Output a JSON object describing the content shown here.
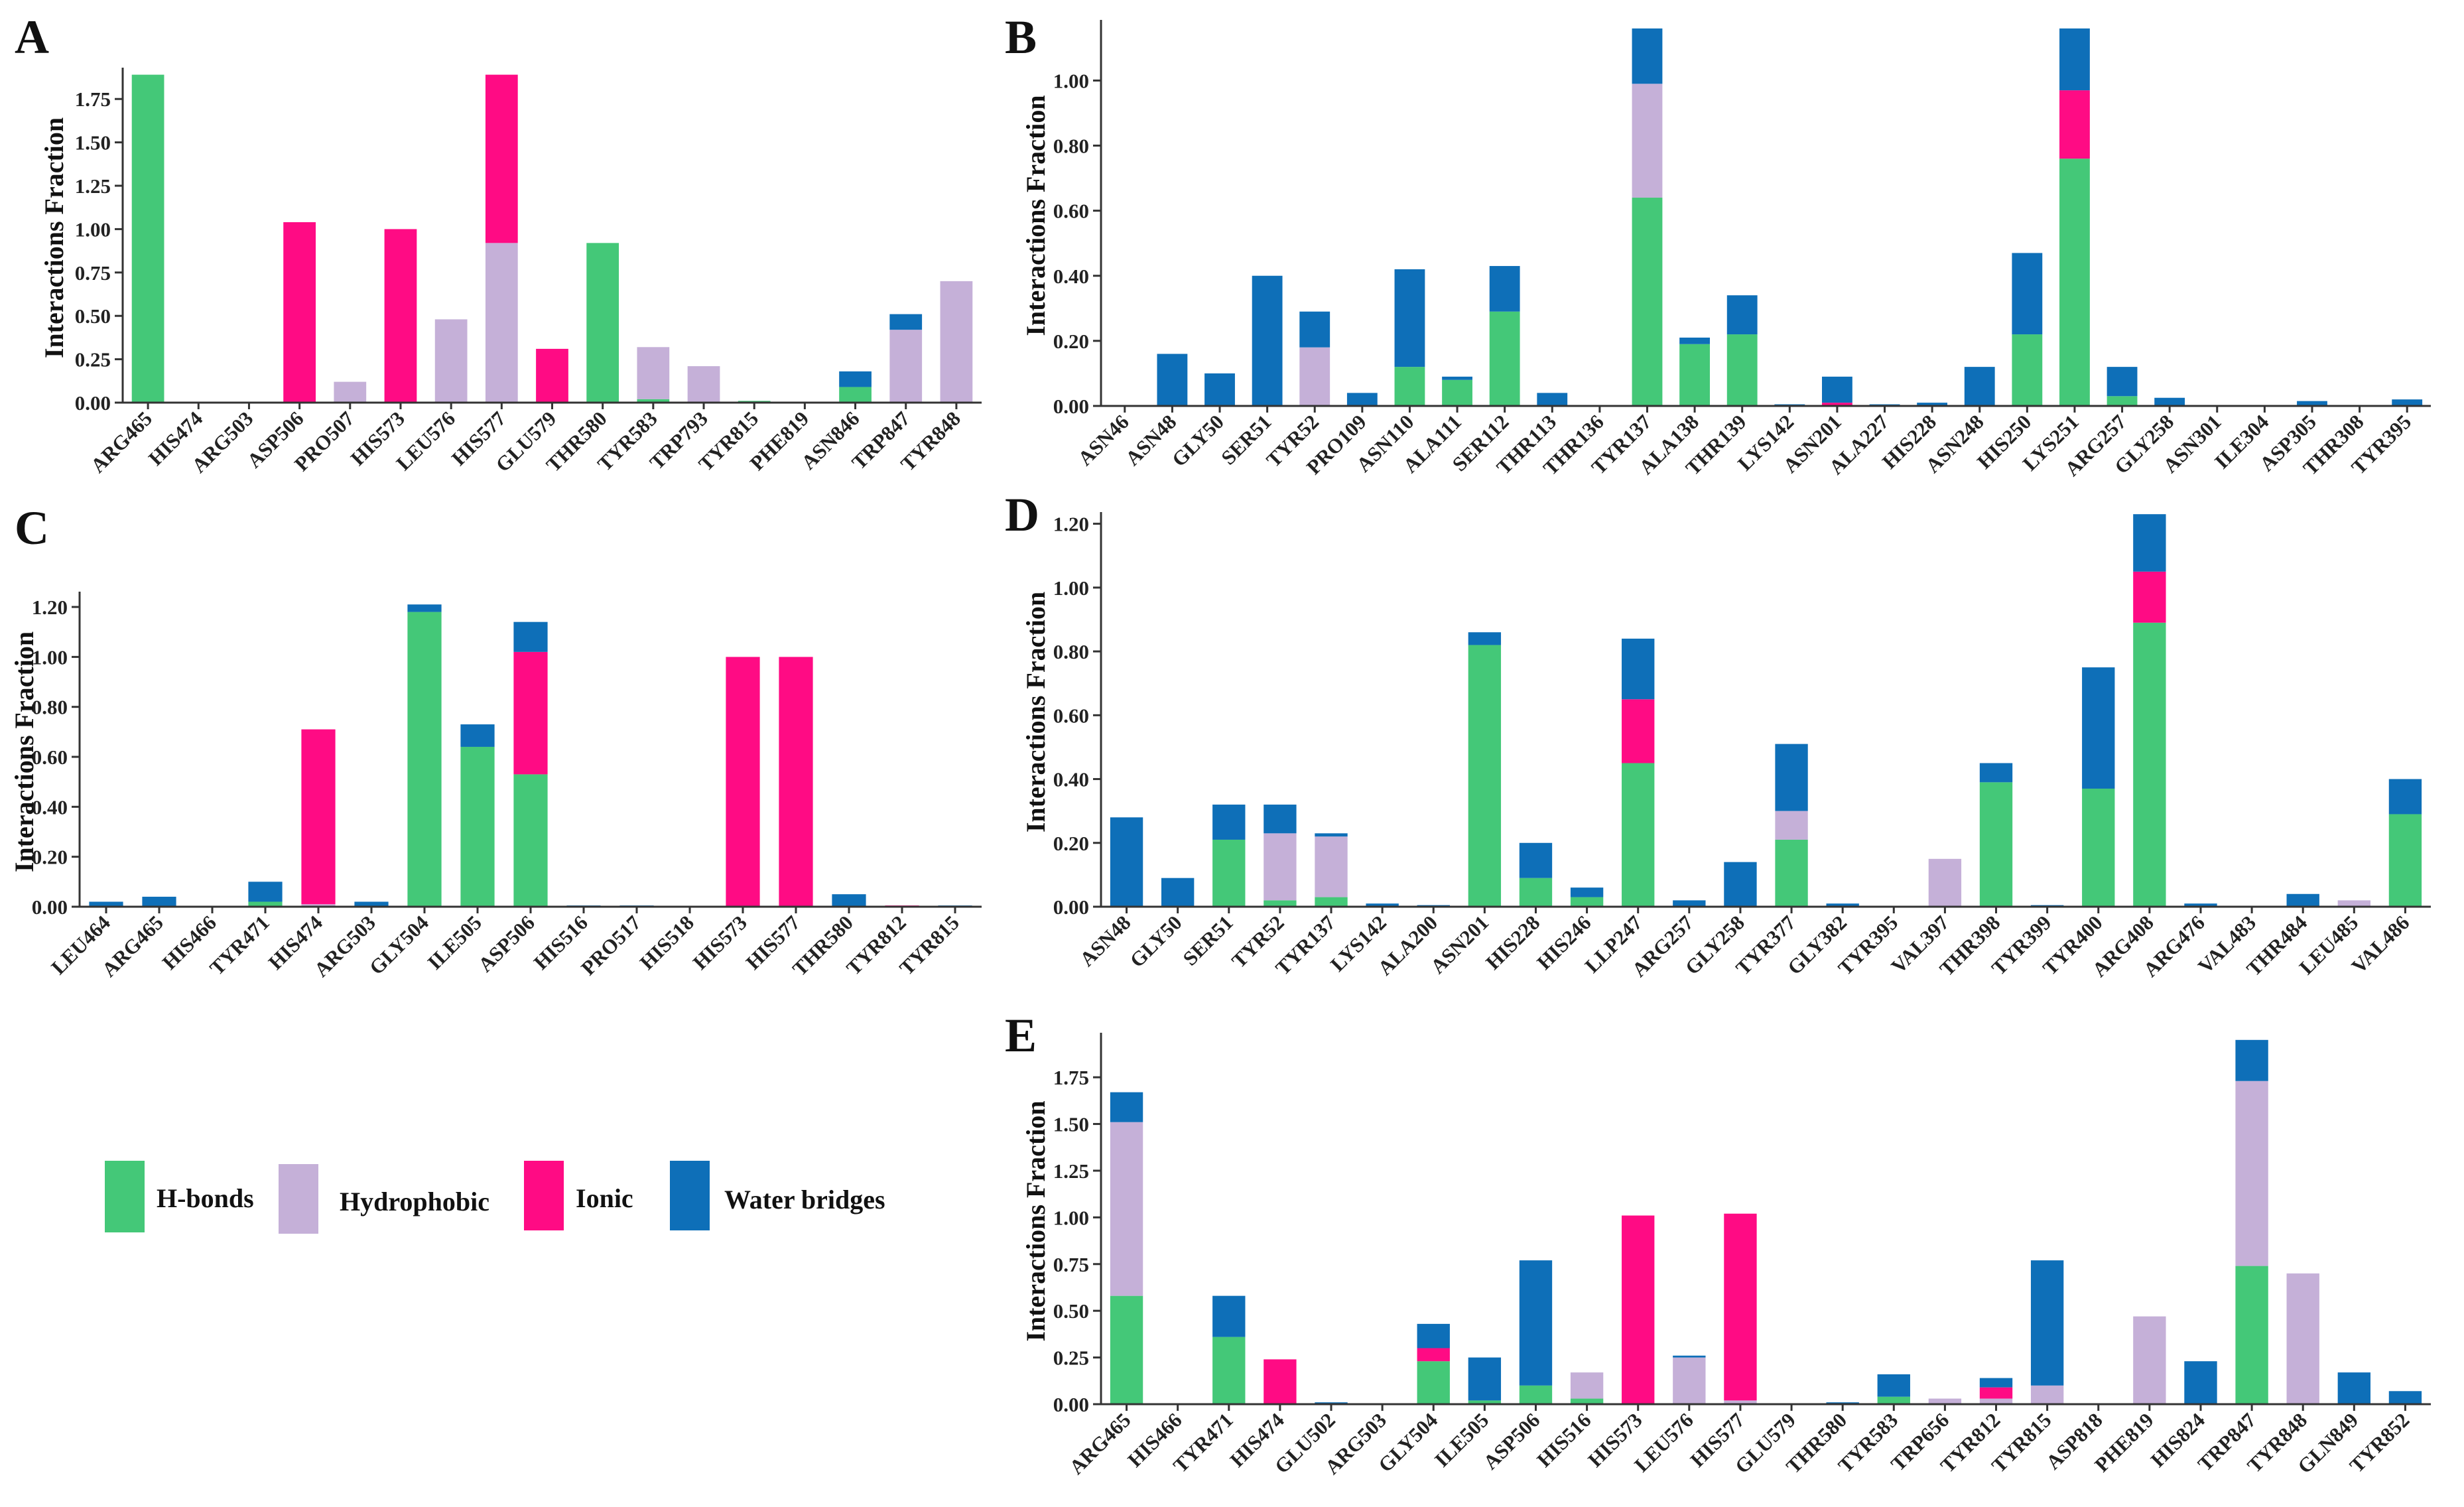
{
  "colors": {
    "hbonds": "#44c878",
    "hydrophobic": "#c5b0d8",
    "ionic": "#ff0b84",
    "water": "#0e6fb8"
  },
  "legend": [
    {
      "key": "hbonds",
      "label": "H-bonds"
    },
    {
      "key": "hydrophobic",
      "label": "Hydrophobic"
    },
    {
      "key": "ionic",
      "label": "Ionic"
    },
    {
      "key": "water",
      "label": "Water bridges"
    }
  ],
  "chart_data": [
    {
      "panel": "A",
      "type": "bar",
      "stacked": true,
      "ylabel": "Interactions Fraction",
      "ylim": [
        0,
        1.9
      ],
      "yticks": [
        "0.00",
        "0.25",
        "0.50",
        "0.75",
        "1.00",
        "1.25",
        "1.50",
        "1.75"
      ],
      "categories": [
        "ARG465",
        "HIS474",
        "ARG503",
        "ASP506",
        "PRO507",
        "HIS573",
        "LEU576",
        "HIS577",
        "GLU579",
        "THR580",
        "TYR583",
        "TRP793",
        "TYR815",
        "PHE819",
        "ASN846",
        "TRP847",
        "TYR848"
      ],
      "series": [
        {
          "name": "H-bonds",
          "key": "hbonds",
          "values": [
            1.89,
            0,
            0,
            0,
            0,
            0,
            0,
            0,
            0,
            0.92,
            0.02,
            0,
            0.01,
            0.005,
            0.09,
            0,
            0
          ]
        },
        {
          "name": "Hydrophobic",
          "key": "hydrophobic",
          "values": [
            0,
            0,
            0,
            0,
            0.12,
            0,
            0.48,
            0.92,
            0,
            0,
            0.3,
            0.21,
            0,
            0,
            0,
            0.42,
            0.7
          ]
        },
        {
          "name": "Ionic",
          "key": "ionic",
          "values": [
            0,
            0,
            0,
            1.04,
            0,
            1.0,
            0,
            0.97,
            0.31,
            0,
            0,
            0,
            0,
            0,
            0,
            0,
            0
          ]
        },
        {
          "name": "Water bridges",
          "key": "water",
          "values": [
            0,
            0,
            0,
            0,
            0,
            0,
            0,
            0,
            0,
            0,
            0,
            0,
            0,
            0,
            0.09,
            0.09,
            0
          ]
        }
      ]
    },
    {
      "panel": "B",
      "type": "bar",
      "stacked": true,
      "ylabel": "Interactions Fraction",
      "ylim": [
        0,
        1.17
      ],
      "yticks": [
        "0.00",
        "0.20",
        "0.40",
        "0.60",
        "0.80",
        "1.00"
      ],
      "categories": [
        "ASN46",
        "ASN48",
        "GLY50",
        "SER51",
        "TYR52",
        "PRO109",
        "ASN110",
        "ALA111",
        "SER112",
        "THR113",
        "THR136",
        "TYR137",
        "ALA138",
        "THR139",
        "LYS142",
        "ASN201",
        "ALA227",
        "HIS228",
        "ASN248",
        "HIS250",
        "LYS251",
        "ARG257",
        "GLY258",
        "ASN301",
        "ILE304",
        "ASP305",
        "THR308",
        "TYR395"
      ],
      "series": [
        {
          "name": "H-bonds",
          "key": "hbonds",
          "values": [
            0,
            0,
            0,
            0,
            0,
            0,
            0.12,
            0.08,
            0.29,
            0,
            0,
            0.64,
            0.19,
            0.22,
            0,
            0,
            0,
            0,
            0,
            0.22,
            0.76,
            0.03,
            0,
            0,
            0,
            0,
            0,
            0
          ]
        },
        {
          "name": "Hydrophobic",
          "key": "hydrophobic",
          "values": [
            0,
            0,
            0,
            0,
            0.18,
            0,
            0,
            0,
            0,
            0,
            0,
            0.35,
            0,
            0,
            0,
            0,
            0,
            0,
            0,
            0,
            0,
            0,
            0,
            0,
            0,
            0,
            0,
            0
          ]
        },
        {
          "name": "Ionic",
          "key": "ionic",
          "values": [
            0,
            0,
            0,
            0,
            0,
            0,
            0,
            0,
            0,
            0,
            0,
            0,
            0,
            0,
            0,
            0.01,
            0,
            0,
            0,
            0,
            0.21,
            0,
            0,
            0,
            0,
            0,
            0,
            0
          ]
        },
        {
          "name": "Water bridges",
          "key": "water",
          "values": [
            0,
            0.16,
            0.1,
            0.4,
            0.11,
            0.04,
            0.3,
            0.01,
            0.14,
            0.04,
            0,
            0.17,
            0.02,
            0.12,
            0.005,
            0.08,
            0.005,
            0.01,
            0.12,
            0.25,
            0.19,
            0.09,
            0.025,
            0,
            0,
            0.015,
            0,
            0.02
          ]
        }
      ]
    },
    {
      "panel": "C",
      "type": "bar",
      "stacked": true,
      "ylabel": "Interactions Fraction",
      "ylim": [
        0,
        1.24
      ],
      "yticks": [
        "0.00",
        "0.20",
        "0.40",
        "0.60",
        "0.80",
        "1.00",
        "1.20"
      ],
      "categories": [
        "LEU464",
        "ARG465",
        "HIS466",
        "TYR471",
        "HIS474",
        "ARG503",
        "GLY504",
        "ILE505",
        "ASP506",
        "HIS516",
        "PRO517",
        "HIS518",
        "HIS573",
        "HIS577",
        "THR580",
        "TYR812",
        "TYR815"
      ],
      "series": [
        {
          "name": "H-bonds",
          "key": "hbonds",
          "values": [
            0,
            0,
            0,
            0.02,
            0,
            0,
            1.18,
            0.64,
            0.53,
            0,
            0,
            0,
            0,
            0,
            0,
            0,
            0
          ]
        },
        {
          "name": "Hydrophobic",
          "key": "hydrophobic",
          "values": [
            0,
            0,
            0,
            0,
            0.01,
            0,
            0,
            0,
            0,
            0,
            0,
            0,
            0,
            0,
            0,
            0,
            0
          ]
        },
        {
          "name": "Ionic",
          "key": "ionic",
          "values": [
            0,
            0,
            0,
            0,
            0.7,
            0,
            0,
            0,
            0.49,
            0,
            0,
            0,
            1.0,
            1.0,
            0,
            0.005,
            0
          ]
        },
        {
          "name": "Water bridges",
          "key": "water",
          "values": [
            0.02,
            0.04,
            0,
            0.08,
            0,
            0.02,
            0.03,
            0.09,
            0.12,
            0.005,
            0.005,
            0,
            0,
            0,
            0.05,
            0,
            0.005
          ]
        }
      ]
    },
    {
      "panel": "D",
      "type": "bar",
      "stacked": true,
      "ylabel": "Interactions Fraction",
      "ylim": [
        0,
        1.22
      ],
      "yticks": [
        "0.00",
        "0.20",
        "0.40",
        "0.60",
        "0.80",
        "1.00",
        "1.20"
      ],
      "categories": [
        "ASN48",
        "GLY50",
        "SER51",
        "TYR52",
        "TYR137",
        "LYS142",
        "ALA200",
        "ASN201",
        "HIS228",
        "HIS246",
        "LLP247",
        "ARG257",
        "GLY258",
        "TYR377",
        "GLY382",
        "TYR395",
        "VAL397",
        "THR398",
        "TYR399",
        "TYR400",
        "ARG408",
        "ARG476",
        "VAL483",
        "THR484",
        "LEU485",
        "VAL486"
      ],
      "series": [
        {
          "name": "H-bonds",
          "key": "hbonds",
          "values": [
            0,
            0,
            0.21,
            0.02,
            0.03,
            0,
            0,
            0.82,
            0.09,
            0.03,
            0.45,
            0,
            0,
            0.21,
            0,
            0,
            0,
            0.39,
            0,
            0.37,
            0.89,
            0,
            0,
            0,
            0,
            0.29
          ]
        },
        {
          "name": "Hydrophobic",
          "key": "hydrophobic",
          "values": [
            0,
            0,
            0,
            0.21,
            0.19,
            0,
            0,
            0,
            0,
            0,
            0,
            0,
            0,
            0.09,
            0,
            0,
            0.15,
            0,
            0,
            0,
            0,
            0,
            0,
            0,
            0.02,
            0
          ]
        },
        {
          "name": "Ionic",
          "key": "ionic",
          "values": [
            0,
            0,
            0,
            0,
            0,
            0,
            0,
            0,
            0,
            0,
            0.2,
            0,
            0,
            0,
            0,
            0,
            0,
            0,
            0,
            0,
            0.16,
            0,
            0,
            0,
            0,
            0
          ]
        },
        {
          "name": "Water bridges",
          "key": "water",
          "values": [
            0.28,
            0.09,
            0.11,
            0.09,
            0.01,
            0.01,
            0.005,
            0.04,
            0.11,
            0.03,
            0.19,
            0.02,
            0.14,
            0.21,
            0.01,
            0,
            0,
            0.06,
            0.005,
            0.38,
            0.18,
            0.01,
            0,
            0.04,
            0,
            0.11
          ]
        }
      ]
    },
    {
      "panel": "E",
      "type": "bar",
      "stacked": true,
      "ylabel": "Interactions Fraction",
      "ylim": [
        0,
        1.96
      ],
      "yticks": [
        "0.00",
        "0.25",
        "0.50",
        "0.75",
        "1.00",
        "1.25",
        "1.50",
        "1.75"
      ],
      "categories": [
        "ARG465",
        "HIS466",
        "TYR471",
        "HIS474",
        "GLU502",
        "ARG503",
        "GLY504",
        "ILE505",
        "ASP506",
        "HIS516",
        "HIS573",
        "LEU576",
        "HIS577",
        "GLU579",
        "THR580",
        "TYR583",
        "TRP656",
        "TYR812",
        "TYR815",
        "ASP818",
        "PHE819",
        "HIS824",
        "TRP847",
        "TYR848",
        "GLN849",
        "TYR852"
      ],
      "series": [
        {
          "name": "H-bonds",
          "key": "hbonds",
          "values": [
            0.58,
            0,
            0.36,
            0,
            0,
            0,
            0.23,
            0.02,
            0.1,
            0.03,
            0,
            0,
            0,
            0,
            0,
            0.04,
            0,
            0,
            0,
            0,
            0,
            0,
            0.74,
            0,
            0,
            0
          ]
        },
        {
          "name": "Hydrophobic",
          "key": "hydrophobic",
          "values": [
            0.93,
            0,
            0,
            0,
            0,
            0,
            0,
            0,
            0,
            0.14,
            0,
            0.25,
            0.02,
            0,
            0,
            0,
            0.03,
            0.03,
            0.1,
            0,
            0.47,
            0,
            0.99,
            0.7,
            0,
            0
          ]
        },
        {
          "name": "Ionic",
          "key": "ionic",
          "values": [
            0,
            0,
            0,
            0.24,
            0,
            0,
            0.07,
            0,
            0,
            0,
            1.01,
            0,
            1.0,
            0,
            0,
            0,
            0,
            0.06,
            0,
            0,
            0,
            0,
            0,
            0,
            0,
            0
          ]
        },
        {
          "name": "Water bridges",
          "key": "water",
          "values": [
            0.16,
            0,
            0.22,
            0,
            0.01,
            0,
            0.13,
            0.23,
            0.67,
            0,
            0,
            0.01,
            0,
            0,
            0.01,
            0.12,
            0,
            0.05,
            0.67,
            0.005,
            0,
            0.23,
            0.22,
            0,
            0.17,
            0.07
          ]
        }
      ]
    }
  ]
}
